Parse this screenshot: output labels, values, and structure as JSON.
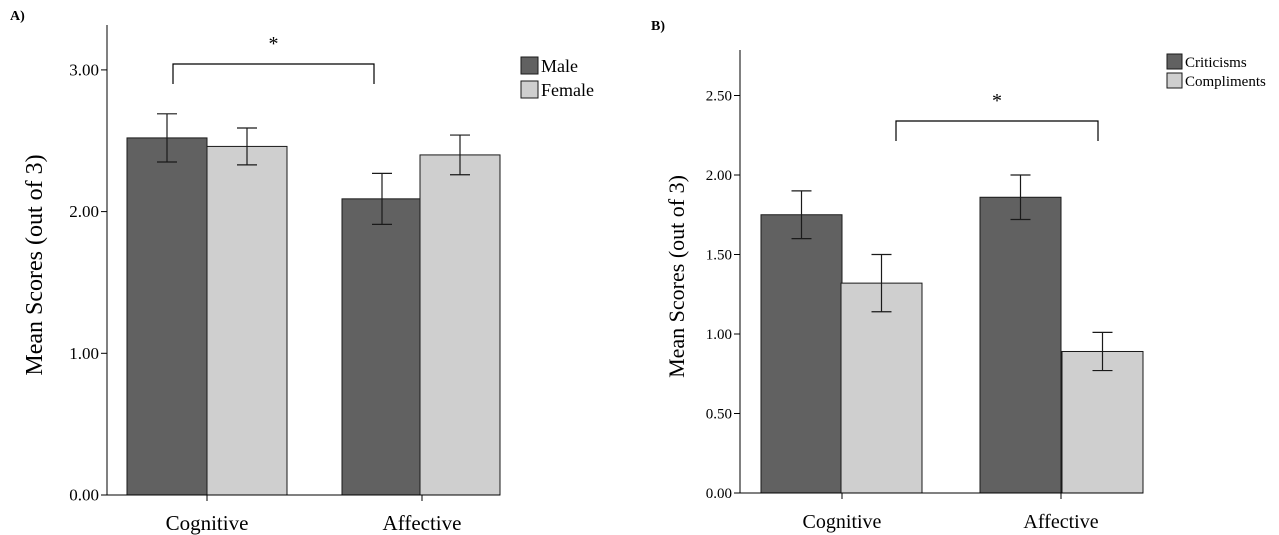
{
  "chart_data": [
    {
      "panel_label": "A)",
      "type": "bar",
      "categories": [
        "Cognitive",
        "Affective"
      ],
      "series": [
        {
          "name": "Male",
          "values": [
            2.52,
            2.09
          ],
          "error": [
            0.17,
            0.18
          ]
        },
        {
          "name": "Female",
          "values": [
            2.46,
            2.4
          ],
          "error": [
            0.13,
            0.14
          ]
        }
      ],
      "ylabel": "Mean Scores (out of 3)",
      "xlabel": "",
      "ylim": [
        0,
        3.3
      ],
      "yticks": [
        0.0,
        1.0,
        2.0,
        3.0
      ],
      "ytick_labels": [
        "0.00",
        "1.00",
        "2.00",
        "3.00"
      ],
      "legend_position": "top-right",
      "grid": false,
      "colors": [
        "#616161",
        "#cfcfcf"
      ],
      "significance": {
        "marker": "*",
        "between_groups": [
          0,
          1
        ],
        "bar_series": 0
      }
    },
    {
      "panel_label": "B)",
      "type": "bar",
      "categories": [
        "Cognitive",
        "Affective"
      ],
      "series": [
        {
          "name": "Criticisms",
          "values": [
            1.75,
            1.86
          ],
          "error": [
            0.15,
            0.14
          ]
        },
        {
          "name": "Compliments",
          "values": [
            1.32,
            0.89
          ],
          "error": [
            0.18,
            0.12
          ]
        }
      ],
      "ylabel": "Mean Scores (out of 3)",
      "xlabel": "",
      "ylim": [
        0,
        2.8
      ],
      "yticks": [
        0.0,
        0.5,
        1.0,
        1.5,
        2.0,
        2.5
      ],
      "ytick_labels": [
        "0.00",
        "0.50",
        "1.00",
        "1.50",
        "2.00",
        "2.50"
      ],
      "legend_position": "top-right",
      "grid": false,
      "colors": [
        "#616161",
        "#cfcfcf"
      ],
      "significance": {
        "marker": "*",
        "between_groups": [
          0,
          1
        ],
        "bar_series": 1
      }
    }
  ]
}
